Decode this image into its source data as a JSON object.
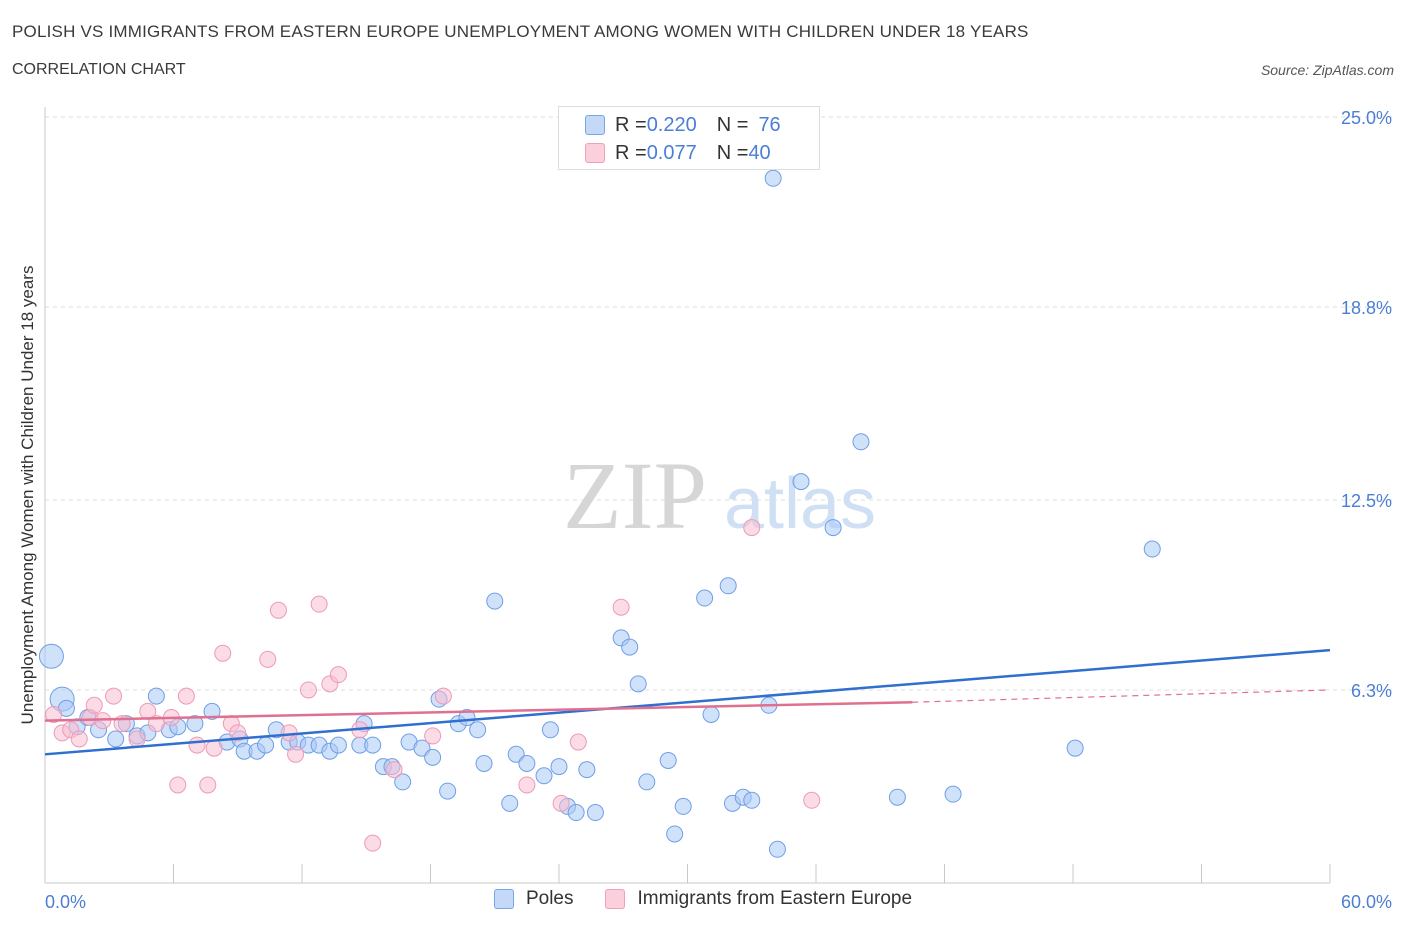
{
  "header": {
    "title": "POLISH VS IMMIGRANTS FROM EASTERN EUROPE UNEMPLOYMENT AMONG WOMEN WITH CHILDREN UNDER 18 YEARS",
    "subtitle": "CORRELATION CHART",
    "source": "Source: ZipAtlas.com"
  },
  "watermark": {
    "zip": "ZIP",
    "atlas": "atlas"
  },
  "legend_top": {
    "rows": [
      {
        "r_label": "R = ",
        "r_value": "0.220",
        "n_label": "N = ",
        "n_value": "76",
        "color": "#7aa6e8"
      },
      {
        "r_label": "R = ",
        "r_value": "0.077",
        "n_label": "N = ",
        "n_value": "40",
        "color": "#f0a0b8"
      }
    ]
  },
  "legend_bottom": {
    "items": [
      {
        "label": "Poles",
        "color": "#7aa6e8"
      },
      {
        "label": "Immigrants from Eastern Europe",
        "color": "#f0a0b8"
      }
    ]
  },
  "chart_data": {
    "type": "scatter",
    "title": "POLISH VS IMMIGRANTS FROM EASTERN EUROPE UNEMPLOYMENT AMONG WOMEN WITH CHILDREN UNDER 18 YEARS",
    "xlabel": "",
    "ylabel": "Unemployment Among Women with Children Under 18 years",
    "xlim": [
      0,
      60
    ],
    "ylim": [
      0,
      25
    ],
    "x_tick_labels": [
      "0.0%",
      "60.0%"
    ],
    "y_ticks": [
      6.3,
      12.5,
      18.8,
      25.0
    ],
    "y_tick_labels": [
      "6.3%",
      "12.5%",
      "18.8%",
      "25.0%"
    ],
    "grid": "horizontal dashed",
    "series": [
      {
        "name": "Poles",
        "color": "#7aa6e8",
        "trend_color": "#2f6fcf",
        "trend": {
          "x": [
            0,
            60
          ],
          "y": [
            4.2,
            7.6
          ]
        },
        "points": [
          [
            0.3,
            7.4
          ],
          [
            0.8,
            6.0
          ],
          [
            1.0,
            5.7
          ],
          [
            1.5,
            5.1
          ],
          [
            2.0,
            5.4
          ],
          [
            2.5,
            5.0
          ],
          [
            3.3,
            4.7
          ],
          [
            3.8,
            5.2
          ],
          [
            4.3,
            4.8
          ],
          [
            4.8,
            4.9
          ],
          [
            5.2,
            6.1
          ],
          [
            5.8,
            5.0
          ],
          [
            6.2,
            5.1
          ],
          [
            7.0,
            5.2
          ],
          [
            7.8,
            5.6
          ],
          [
            8.5,
            4.6
          ],
          [
            9.1,
            4.7
          ],
          [
            9.3,
            4.3
          ],
          [
            9.9,
            4.3
          ],
          [
            10.3,
            4.5
          ],
          [
            10.8,
            5.0
          ],
          [
            11.4,
            4.6
          ],
          [
            11.8,
            4.6
          ],
          [
            12.3,
            4.5
          ],
          [
            12.8,
            4.5
          ],
          [
            13.3,
            4.3
          ],
          [
            13.7,
            4.5
          ],
          [
            14.7,
            4.5
          ],
          [
            14.9,
            5.2
          ],
          [
            15.3,
            4.5
          ],
          [
            15.8,
            3.8
          ],
          [
            16.2,
            3.8
          ],
          [
            16.7,
            3.3
          ],
          [
            17.0,
            4.6
          ],
          [
            17.6,
            4.4
          ],
          [
            18.1,
            4.1
          ],
          [
            18.4,
            6.0
          ],
          [
            18.8,
            3.0
          ],
          [
            19.3,
            5.2
          ],
          [
            19.7,
            5.4
          ],
          [
            20.2,
            5.0
          ],
          [
            20.5,
            3.9
          ],
          [
            21.0,
            9.2
          ],
          [
            21.7,
            2.6
          ],
          [
            22.0,
            4.2
          ],
          [
            22.5,
            3.9
          ],
          [
            23.3,
            3.5
          ],
          [
            23.6,
            5.0
          ],
          [
            24.0,
            3.8
          ],
          [
            24.4,
            2.5
          ],
          [
            24.8,
            2.3
          ],
          [
            25.3,
            3.7
          ],
          [
            25.7,
            2.3
          ],
          [
            26.9,
            8.0
          ],
          [
            27.3,
            7.7
          ],
          [
            27.7,
            6.5
          ],
          [
            28.1,
            3.3
          ],
          [
            29.1,
            4.0
          ],
          [
            29.4,
            1.6
          ],
          [
            29.8,
            2.5
          ],
          [
            30.8,
            9.3
          ],
          [
            31.1,
            5.5
          ],
          [
            31.9,
            9.7
          ],
          [
            32.1,
            2.6
          ],
          [
            32.6,
            2.8
          ],
          [
            33.0,
            2.7
          ],
          [
            33.8,
            5.8
          ],
          [
            34.0,
            23.0
          ],
          [
            34.2,
            1.1
          ],
          [
            35.3,
            13.1
          ],
          [
            36.8,
            11.6
          ],
          [
            38.1,
            14.4
          ],
          [
            39.8,
            2.8
          ],
          [
            42.4,
            2.9
          ],
          [
            48.1,
            4.4
          ],
          [
            51.7,
            10.9
          ]
        ]
      },
      {
        "name": "Immigrants from Eastern Europe",
        "color": "#f0a0b8",
        "trend_color": "#e0708f",
        "trend": {
          "x": [
            0,
            40.5
          ],
          "y": [
            5.3,
            5.9
          ]
        },
        "trend_dashed": {
          "x": [
            40.5,
            60
          ],
          "y": [
            5.9,
            6.3
          ]
        },
        "points": [
          [
            0.4,
            5.5
          ],
          [
            0.8,
            4.9
          ],
          [
            1.2,
            5.0
          ],
          [
            1.6,
            4.7
          ],
          [
            2.1,
            5.4
          ],
          [
            2.3,
            5.8
          ],
          [
            2.7,
            5.3
          ],
          [
            3.2,
            6.1
          ],
          [
            3.6,
            5.2
          ],
          [
            4.3,
            4.7
          ],
          [
            4.8,
            5.6
          ],
          [
            5.2,
            5.2
          ],
          [
            5.9,
            5.4
          ],
          [
            6.2,
            3.2
          ],
          [
            6.6,
            6.1
          ],
          [
            7.1,
            4.5
          ],
          [
            7.6,
            3.2
          ],
          [
            7.9,
            4.4
          ],
          [
            8.3,
            7.5
          ],
          [
            8.7,
            5.2
          ],
          [
            9.0,
            4.9
          ],
          [
            10.4,
            7.3
          ],
          [
            10.9,
            8.9
          ],
          [
            11.4,
            4.9
          ],
          [
            11.7,
            4.2
          ],
          [
            12.3,
            6.3
          ],
          [
            12.8,
            9.1
          ],
          [
            13.3,
            6.5
          ],
          [
            13.7,
            6.8
          ],
          [
            14.7,
            5.0
          ],
          [
            15.3,
            1.3
          ],
          [
            16.3,
            3.7
          ],
          [
            18.1,
            4.8
          ],
          [
            18.6,
            6.1
          ],
          [
            22.5,
            3.2
          ],
          [
            24.1,
            2.6
          ],
          [
            24.9,
            4.6
          ],
          [
            26.9,
            9.0
          ],
          [
            33.0,
            11.6
          ],
          [
            35.8,
            2.7
          ]
        ]
      }
    ]
  }
}
